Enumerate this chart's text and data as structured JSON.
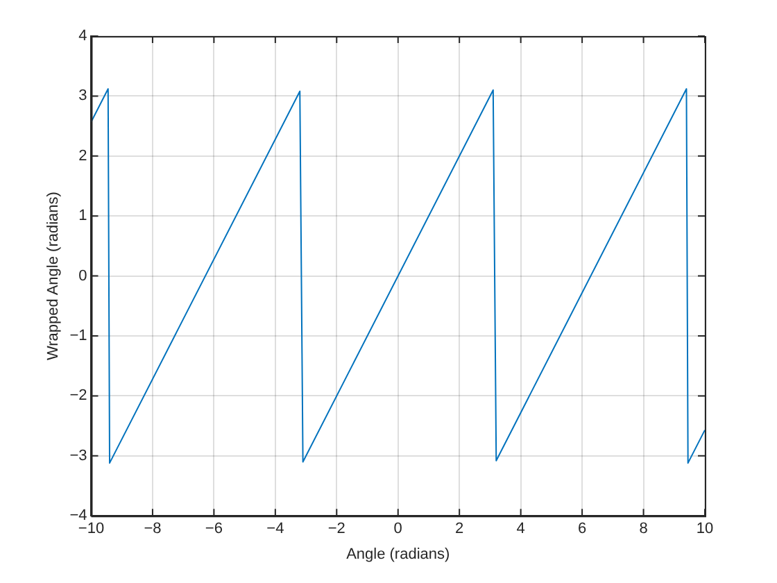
{
  "chart_data": {
    "type": "line",
    "xlabel": "Angle (radians)",
    "ylabel": "Wrapped Angle (radians)",
    "x": [
      -10,
      -9.45,
      -9.4,
      -3.2,
      -3.1,
      3.1,
      3.2,
      9.4,
      9.45,
      10
    ],
    "series": [
      {
        "color": "#0072bd",
        "values": [
          2.57,
          3.12,
          -3.12,
          3.08,
          -3.1,
          3.1,
          -3.08,
          3.12,
          -3.12,
          -2.57
        ]
      }
    ],
    "xlim": [
      -10,
      10
    ],
    "xticks": [
      -10,
      -8,
      -6,
      -4,
      -2,
      0,
      2,
      4,
      6,
      8,
      10
    ],
    "ylim": [
      -4,
      4
    ],
    "yticks": [
      -4,
      -3,
      -2,
      -1,
      0,
      1,
      2,
      3,
      4
    ],
    "grid": true,
    "legend": false,
    "marker": "none",
    "line_style": "solid"
  }
}
